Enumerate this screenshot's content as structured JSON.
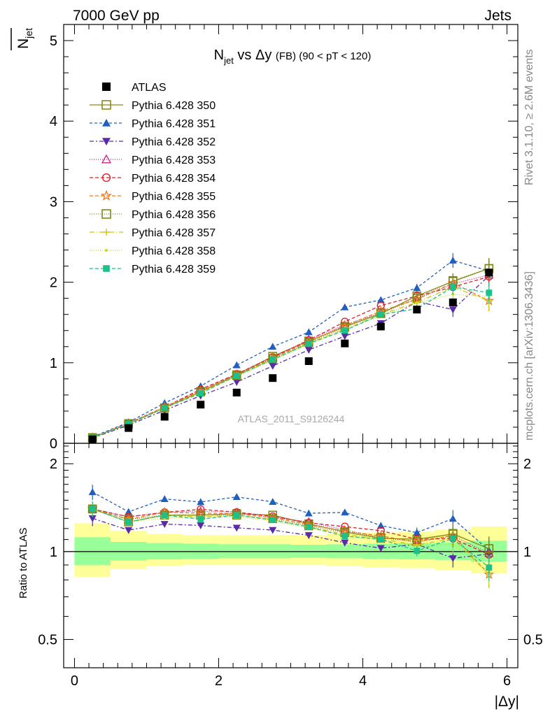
{
  "header": {
    "left": "7000 GeV pp",
    "right": "Jets"
  },
  "side_texts": {
    "rivet": "Rivet 3.1.10, ≥ 2.6M events",
    "mcplots": "mcplots.cern.ch [arXiv:1306.3436]"
  },
  "title": {
    "main": "N",
    "sub": "jet",
    "rest": " vs Δy ",
    "fb": "(FB)",
    "range": " (90 < pT < 120)"
  },
  "watermark": "ATLAS_2011_S9126244",
  "ylabel_main": {
    "main": "N",
    "sub": "jet"
  },
  "ylabel_ratio": "Ratio to ATLAS",
  "xlabel": "|Δy|",
  "x_ticks": [
    "0",
    "2",
    "4",
    "6"
  ],
  "main_y_ticks": [
    "0",
    "1",
    "2",
    "3",
    "4",
    "5"
  ],
  "ratio_y_ticks": [
    "0.5",
    "1",
    "2"
  ],
  "chart_data": {
    "type": "scatter",
    "x": [
      0.25,
      0.75,
      1.25,
      1.75,
      2.25,
      2.75,
      3.25,
      3.75,
      4.25,
      4.75,
      5.25,
      5.75
    ],
    "xlim": [
      -0.15,
      6.15
    ],
    "ylim": [
      0,
      5.2
    ],
    "ratio_ylim_log": [
      0.4,
      2.35
    ],
    "data": {
      "name": "ATLAS",
      "values": [
        0.05,
        0.19,
        0.33,
        0.48,
        0.63,
        0.81,
        1.02,
        1.24,
        1.45,
        1.66,
        1.75,
        2.12
      ]
    },
    "band_inner": [
      0.12,
      0.08,
      0.07,
      0.065,
      0.06,
      0.06,
      0.055,
      0.06,
      0.065,
      0.07,
      0.075,
      0.09
    ],
    "band_outer": [
      0.25,
      0.18,
      0.15,
      0.14,
      0.14,
      0.14,
      0.14,
      0.15,
      0.16,
      0.17,
      0.19,
      0.22
    ],
    "series": [
      {
        "name": "Pythia 6.428 350",
        "color": "#8a8a1a",
        "marker": "square-open",
        "dash": "",
        "values": [
          0.07,
          0.24,
          0.44,
          0.64,
          0.85,
          1.08,
          1.27,
          1.45,
          1.61,
          1.83,
          2.01,
          2.17
        ]
      },
      {
        "name": "Pythia 6.428 351",
        "color": "#1f5fbf",
        "marker": "triangle-up",
        "dash": "4,3",
        "values": [
          0.08,
          0.26,
          0.5,
          0.71,
          0.97,
          1.2,
          1.38,
          1.69,
          1.78,
          1.93,
          2.27,
          2.14
        ]
      },
      {
        "name": "Pythia 6.428 352",
        "color": "#5a2aa8",
        "marker": "triangle-down",
        "dash": "6,3,2,3",
        "values": [
          0.065,
          0.225,
          0.41,
          0.59,
          0.76,
          0.96,
          1.16,
          1.33,
          1.49,
          1.76,
          1.66,
          2.08
        ]
      },
      {
        "name": "Pythia 6.428 353",
        "color": "#c0248a",
        "marker": "triangle-open",
        "dash": "1,2",
        "values": [
          0.07,
          0.25,
          0.45,
          0.66,
          0.86,
          1.06,
          1.29,
          1.47,
          1.62,
          1.79,
          1.98,
          2.09
        ]
      },
      {
        "name": "Pythia 6.428 354",
        "color": "#e0202a",
        "marker": "circle-open",
        "dash": "5,3",
        "values": [
          0.07,
          0.25,
          0.45,
          0.67,
          0.86,
          1.07,
          1.28,
          1.51,
          1.71,
          1.83,
          1.94,
          2.07
        ]
      },
      {
        "name": "Pythia 6.428 355",
        "color": "#f07818",
        "marker": "star",
        "dash": "5,3",
        "values": [
          0.07,
          0.245,
          0.45,
          0.65,
          0.85,
          1.06,
          1.26,
          1.46,
          1.64,
          1.79,
          1.99,
          1.77
        ]
      },
      {
        "name": "Pythia 6.428 356",
        "color": "#7a8a10",
        "marker": "square-open",
        "dash": "1,2",
        "values": [
          0.07,
          0.245,
          0.44,
          0.64,
          0.84,
          1.05,
          1.25,
          1.44,
          1.62,
          1.8,
          2.02,
          2.17
        ]
      },
      {
        "name": "Pythia 6.428 357",
        "color": "#d6c412",
        "marker": "plus",
        "dash": "7,3,1,3",
        "values": [
          0.07,
          0.24,
          0.44,
          0.63,
          0.84,
          1.04,
          1.24,
          1.42,
          1.6,
          1.75,
          1.94,
          1.77
        ]
      },
      {
        "name": "Pythia 6.428 358",
        "color": "#c6da28",
        "marker": "dot",
        "dash": "1,2",
        "values": [
          0.07,
          0.24,
          0.43,
          0.63,
          0.83,
          1.03,
          1.23,
          1.41,
          1.58,
          1.74,
          1.85,
          1.82
        ]
      },
      {
        "name": "Pythia 6.428 359",
        "color": "#1cc08a",
        "marker": "square",
        "dash": "5,3",
        "values": [
          0.07,
          0.24,
          0.44,
          0.62,
          0.84,
          1.04,
          1.24,
          1.4,
          1.6,
          1.67,
          1.94,
          1.87
        ]
      }
    ]
  }
}
